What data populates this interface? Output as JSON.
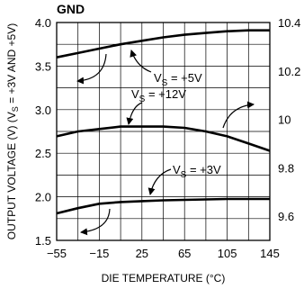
{
  "chart_data": {
    "type": "line",
    "title": "GND",
    "xlabel": "DIE TEMPERATURE (°C)",
    "ylabel": "OUTPUT VOLTAGE (V) (Vₛ = +3V AND +5V)",
    "ylabel_parts": {
      "before": "OUTPUT VOLTAGE (V) (V",
      "sub": "S",
      "after": " = +3V AND +5V)"
    },
    "xlim": [
      -55,
      145
    ],
    "ylim": [
      1.5,
      4.0
    ],
    "y2lim": [
      9.5,
      10.4
    ],
    "grid": true,
    "x_ticks": [
      -55,
      -15,
      25,
      65,
      105,
      145
    ],
    "x_tick_labels": [
      "−55",
      "−15",
      "25",
      "65",
      "105",
      "145"
    ],
    "y_ticks": [
      1.5,
      2.0,
      2.5,
      3.0,
      3.5,
      4.0
    ],
    "y_tick_labels": [
      "1.5",
      "2.0",
      "2.5",
      "3.0",
      "3.5",
      "4.0"
    ],
    "y2_ticks": [
      9.6,
      9.8,
      10.0,
      10.2,
      10.4
    ],
    "y2_tick_labels": [
      "9.6",
      "9.8",
      "10",
      "10.2",
      "10.4"
    ],
    "series": [
      {
        "name": "V_S = +5V",
        "label": {
          "v": "V",
          "sub": "S",
          "rest": " = +5V"
        },
        "axis": "left",
        "x": [
          -55,
          -35,
          -15,
          5,
          25,
          45,
          65,
          85,
          105,
          125,
          145
        ],
        "y": [
          3.6,
          3.65,
          3.7,
          3.75,
          3.79,
          3.83,
          3.86,
          3.88,
          3.9,
          3.91,
          3.91
        ]
      },
      {
        "name": "V_S = +12V",
        "label": {
          "v": "V",
          "sub": "S",
          "rest": " = +12V"
        },
        "axis": "right",
        "x": [
          -55,
          -35,
          -15,
          5,
          25,
          45,
          65,
          85,
          105,
          125,
          145
        ],
        "y": [
          9.93,
          9.95,
          9.96,
          9.97,
          9.97,
          9.97,
          9.965,
          9.95,
          9.93,
          9.9,
          9.87
        ]
      },
      {
        "name": "V_S = +3V",
        "label": {
          "v": "V",
          "sub": "S",
          "rest": " = +3V"
        },
        "axis": "left",
        "x": [
          -55,
          -35,
          -15,
          5,
          25,
          45,
          65,
          85,
          105,
          125,
          145
        ],
        "y": [
          1.81,
          1.87,
          1.92,
          1.94,
          1.95,
          1.96,
          1.965,
          1.97,
          1.975,
          1.975,
          1.975
        ]
      }
    ]
  }
}
